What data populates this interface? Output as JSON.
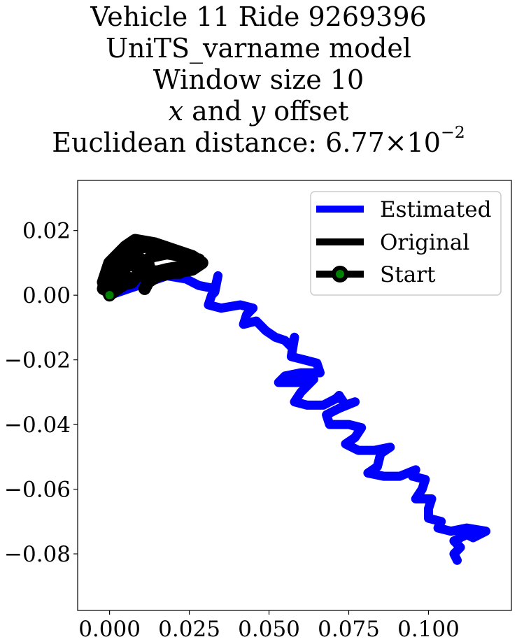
{
  "title": {
    "line1": "Vehicle 11 Ride 9269396",
    "line2": "UniTS_varname model",
    "line3": "Window size 10",
    "line4_var1": "x",
    "line4_mid": " and ",
    "line4_var2": "y",
    "line4_end": " offset",
    "line5_prefix": "Euclidean distance: ",
    "line5_mantissa": "6.77",
    "line5_times": "×10",
    "line5_exponent": "−2"
  },
  "chart_data": {
    "type": "line",
    "xlim": [
      -0.01,
      0.126
    ],
    "ylim": [
      -0.0975,
      0.0355
    ],
    "x_ticks": [
      0.0,
      0.025,
      0.05,
      0.075,
      0.1
    ],
    "x_tick_labels": [
      "0.000",
      "0.025",
      "0.050",
      "0.075",
      "0.100"
    ],
    "y_ticks": [
      0.02,
      0.0,
      -0.02,
      -0.04,
      -0.06,
      -0.08
    ],
    "y_tick_labels": [
      "0.02",
      "0.00",
      "−0.02",
      "−0.04",
      "−0.06",
      "−0.08"
    ],
    "grid": false,
    "legend_position": "upper right",
    "series": [
      {
        "name": "Estimated",
        "color": "#0000ff",
        "points": [
          [
            0.0,
            0.0
          ],
          [
            0.006,
            0.002
          ],
          [
            0.012,
            0.004
          ],
          [
            0.018,
            0.006
          ],
          [
            0.024,
            0.005
          ],
          [
            0.028,
            0.003
          ],
          [
            0.033,
            0.002
          ],
          [
            0.034,
            0.006
          ],
          [
            0.033,
            0.001
          ],
          [
            0.032,
            0.0
          ],
          [
            0.031,
            -0.003
          ],
          [
            0.035,
            -0.004
          ],
          [
            0.041,
            -0.003
          ],
          [
            0.045,
            -0.004
          ],
          [
            0.043,
            -0.006
          ],
          [
            0.042,
            -0.009
          ],
          [
            0.046,
            -0.008
          ],
          [
            0.049,
            -0.011
          ],
          [
            0.052,
            -0.013
          ],
          [
            0.055,
            -0.014
          ],
          [
            0.057,
            -0.016
          ],
          [
            0.058,
            -0.013
          ],
          [
            0.057,
            -0.019
          ],
          [
            0.061,
            -0.02
          ],
          [
            0.065,
            -0.021
          ],
          [
            0.066,
            -0.024
          ],
          [
            0.06,
            -0.024
          ],
          [
            0.055,
            -0.025
          ],
          [
            0.053,
            -0.027
          ],
          [
            0.059,
            -0.027
          ],
          [
            0.064,
            -0.026
          ],
          [
            0.06,
            -0.03
          ],
          [
            0.058,
            -0.033
          ],
          [
            0.062,
            -0.034
          ],
          [
            0.067,
            -0.034
          ],
          [
            0.071,
            -0.032
          ],
          [
            0.072,
            -0.031
          ],
          [
            0.074,
            -0.034
          ],
          [
            0.077,
            -0.033
          ],
          [
            0.072,
            -0.035
          ],
          [
            0.068,
            -0.037
          ],
          [
            0.069,
            -0.04
          ],
          [
            0.075,
            -0.04
          ],
          [
            0.079,
            -0.041
          ],
          [
            0.077,
            -0.044
          ],
          [
            0.074,
            -0.046
          ],
          [
            0.078,
            -0.048
          ],
          [
            0.083,
            -0.048
          ],
          [
            0.088,
            -0.047
          ],
          [
            0.085,
            -0.049
          ],
          [
            0.084,
            -0.053
          ],
          [
            0.081,
            -0.055
          ],
          [
            0.086,
            -0.056
          ],
          [
            0.091,
            -0.056
          ],
          [
            0.096,
            -0.054
          ],
          [
            0.095,
            -0.056
          ],
          [
            0.099,
            -0.057
          ],
          [
            0.098,
            -0.06
          ],
          [
            0.096,
            -0.063
          ],
          [
            0.101,
            -0.063
          ],
          [
            0.1,
            -0.066
          ],
          [
            0.1,
            -0.069
          ],
          [
            0.104,
            -0.07
          ],
          [
            0.103,
            -0.072
          ],
          [
            0.107,
            -0.073
          ],
          [
            0.112,
            -0.072
          ],
          [
            0.118,
            -0.073
          ],
          [
            0.114,
            -0.075
          ],
          [
            0.112,
            -0.074
          ],
          [
            0.108,
            -0.076
          ],
          [
            0.11,
            -0.078
          ],
          [
            0.108,
            -0.08
          ],
          [
            0.109,
            -0.082
          ]
        ]
      },
      {
        "name": "Original",
        "color": "#000000",
        "points": [
          [
            0.0,
            0.0
          ],
          [
            -0.002,
            0.004
          ],
          [
            0.0,
            0.01
          ],
          [
            0.005,
            0.015
          ],
          [
            0.008,
            0.017
          ],
          [
            0.014,
            0.016
          ],
          [
            0.02,
            0.014
          ],
          [
            0.026,
            0.012
          ],
          [
            0.029,
            0.01
          ],
          [
            0.026,
            0.008
          ],
          [
            0.02,
            0.007
          ],
          [
            0.015,
            0.006
          ],
          [
            0.012,
            0.004
          ],
          [
            0.011,
            0.002
          ],
          [
            0.013,
            0.006
          ],
          [
            0.012,
            0.01
          ],
          [
            0.008,
            0.012
          ],
          [
            0.003,
            0.01
          ],
          [
            0.001,
            0.006
          ],
          [
            0.003,
            0.003
          ],
          [
            0.007,
            0.004
          ],
          [
            0.01,
            0.008
          ],
          [
            0.013,
            0.012
          ],
          [
            0.018,
            0.013
          ],
          [
            0.024,
            0.012
          ],
          [
            0.028,
            0.011
          ],
          [
            0.024,
            0.009
          ],
          [
            0.018,
            0.008
          ],
          [
            0.014,
            0.007
          ],
          [
            0.009,
            0.006
          ],
          [
            0.005,
            0.004
          ],
          [
            0.002,
            0.002
          ],
          [
            0.0,
            0.001
          ],
          [
            -0.002,
            0.002
          ],
          [
            -0.001,
            0.006
          ],
          [
            0.002,
            0.011
          ],
          [
            0.006,
            0.014
          ],
          [
            0.011,
            0.015
          ],
          [
            0.017,
            0.015
          ],
          [
            0.023,
            0.013
          ],
          [
            0.027,
            0.01
          ],
          [
            0.022,
            0.007
          ],
          [
            0.016,
            0.007
          ],
          [
            0.01,
            0.008
          ],
          [
            0.006,
            0.01
          ],
          [
            0.004,
            0.007
          ],
          [
            0.006,
            0.005
          ],
          [
            0.004,
            0.003
          ],
          [
            0.001,
            0.001
          ],
          [
            0.0,
            0.0
          ]
        ]
      }
    ],
    "start_marker": {
      "name": "Start",
      "x": 0.0,
      "y": 0.0,
      "face_color": "#008000",
      "edge_color": "#000000"
    }
  }
}
